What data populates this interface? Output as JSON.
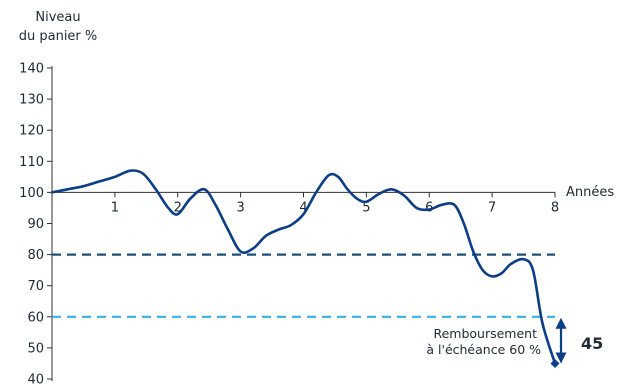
{
  "chart_data": {
    "type": "line",
    "ylabel_line1": "Niveau",
    "ylabel_line2": "du panier %",
    "xlabel": "Années",
    "ylim": [
      40,
      140
    ],
    "xlim": [
      0,
      8
    ],
    "y_ticks": [
      "40",
      "50",
      "60",
      "70",
      "80",
      "90",
      "100",
      "110",
      "120",
      "130",
      "140"
    ],
    "x_ticks": [
      "1",
      "2",
      "3",
      "4",
      "5",
      "6",
      "7",
      "8"
    ],
    "x_axis_at_y": 100,
    "series": [
      {
        "x": [
          0,
          0.25,
          0.5,
          0.75,
          1.0,
          1.25,
          1.45,
          1.65,
          1.85,
          2.0,
          2.2,
          2.42,
          2.6,
          2.8,
          3.0,
          3.2,
          3.4,
          3.6,
          3.8,
          4.0,
          4.2,
          4.4,
          4.55,
          4.7,
          4.85,
          5.0,
          5.2,
          5.4,
          5.6,
          5.8,
          6.0,
          6.2,
          6.4,
          6.55,
          6.7,
          6.85,
          7.0,
          7.15,
          7.3,
          7.5,
          7.65,
          7.8,
          8.0
        ],
        "y": [
          100,
          101,
          102,
          103.5,
          105,
          107,
          106,
          101,
          95,
          93,
          98,
          101,
          96,
          88,
          81,
          82,
          86,
          88,
          89.5,
          93,
          100,
          105.5,
          105,
          101,
          98,
          97,
          99.5,
          101,
          99,
          95,
          94.5,
          96,
          96,
          90,
          81,
          75,
          73,
          74,
          77,
          78.5,
          75,
          58,
          45
        ]
      }
    ],
    "reference_lines": [
      {
        "y": 80,
        "color": "#1d4e79",
        "style": "dashed"
      },
      {
        "y": 60,
        "color": "#35b3e0",
        "style": "dashed"
      }
    ],
    "annotation_line1": "Remboursement",
    "annotation_line2": "à l'échéance 60 %",
    "final_value_label": "45",
    "colors": {
      "line": "#0c3d87",
      "text": "#1f2a37",
      "axis": "#333333",
      "ref80": "#1d4e79",
      "ref60": "#35b3e0",
      "arrow": "#0c3d87"
    }
  }
}
